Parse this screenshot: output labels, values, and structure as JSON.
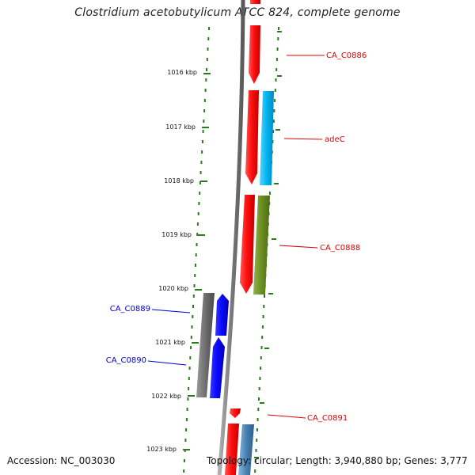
{
  "title": "Clostridium acetobutylicum ATCC 824, complete genome",
  "accession_text": "Accession: NC_003030",
  "summary_text": "Topology: circular; Length: 3,940,880 bp; Genes: 3,777",
  "colors": {
    "backbone": "#808080",
    "ruler": "#2a7a1e",
    "forward_gene": "#ee0000",
    "reverse_gene": "#0000ee",
    "label_forward": "#dd0000",
    "label_reverse": "#0000cc",
    "cyan_feature": "#00aaee",
    "olive_feature": "#6b8e23",
    "grey_feature": "#666666",
    "steel_feature": "#4682b4"
  },
  "ticks": [
    {
      "label": "1016 kbp"
    },
    {
      "label": "1017 kbp"
    },
    {
      "label": "1018 kbp"
    },
    {
      "label": "1019 kbp"
    },
    {
      "label": "1020 kbp"
    },
    {
      "label": "1021 kbp"
    },
    {
      "label": "1022 kbp"
    },
    {
      "label": "1023 kbp"
    }
  ],
  "genes": [
    {
      "label": "CA_C0886",
      "strand": "forward"
    },
    {
      "label": "adeC",
      "strand": "forward"
    },
    {
      "label": "CA_C0888",
      "strand": "forward"
    },
    {
      "label": "CA_C0889",
      "strand": "reverse"
    },
    {
      "label": "CA_C0890",
      "strand": "reverse"
    },
    {
      "label": "CA_C0891",
      "strand": "forward"
    }
  ]
}
